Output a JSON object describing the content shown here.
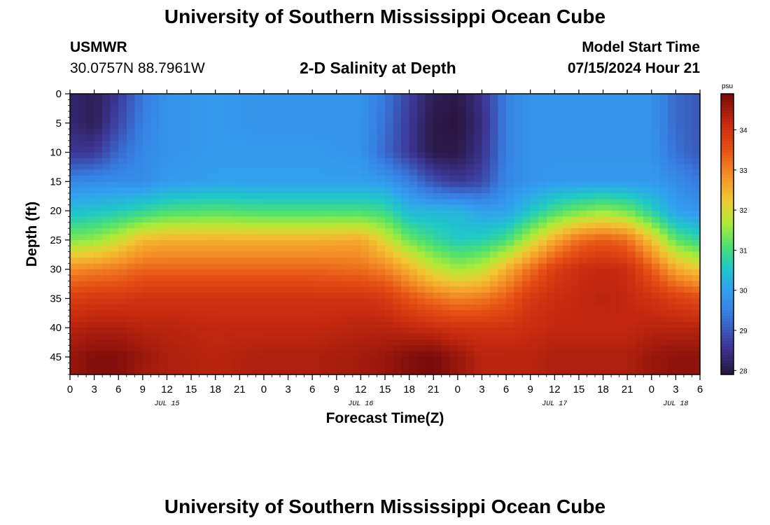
{
  "header": {
    "title": "University of Southern Mississippi Ocean Cube",
    "station_name": "USMWR",
    "station_coords": "30.0757N  88.7961W",
    "model_start_label": "Model Start Time",
    "model_start_value": "07/15/2024 Hour 21"
  },
  "footer": {
    "title": "University of Southern Mississippi Ocean Cube"
  },
  "chart_data": {
    "type": "heatmap",
    "title": "2-D Salinity at Depth",
    "xlabel": "Forecast Time(Z)",
    "ylabel": "Depth (ft)",
    "x_hours_range": [
      0,
      78
    ],
    "x_tick_labels": [
      "0",
      "3",
      "6",
      "9",
      "12",
      "15",
      "18",
      "21",
      "0",
      "3",
      "6",
      "9",
      "12",
      "15",
      "18",
      "21",
      "0",
      "3",
      "6",
      "9",
      "12",
      "15",
      "18",
      "21",
      "0",
      "3",
      "6"
    ],
    "day_labels": [
      {
        "label": "JUL 15",
        "hour": 12
      },
      {
        "label": "JUL 16",
        "hour": 36
      },
      {
        "label": "JUL 17",
        "hour": 60
      },
      {
        "label": "JUL 18",
        "hour": 75
      }
    ],
    "y_range": [
      0,
      48
    ],
    "y_ticks": [
      0,
      5,
      10,
      15,
      20,
      25,
      30,
      35,
      40,
      45
    ],
    "y_inverted": true,
    "colorbar": {
      "unit": "psu",
      "min": 27.9,
      "max": 34.9,
      "ticks": [
        28,
        29,
        30,
        31,
        32,
        33,
        34
      ]
    },
    "depth_samples_ft": [
      0,
      5,
      10,
      15,
      20,
      25,
      30,
      35,
      40,
      45,
      48
    ],
    "salinity_profiles": [
      {
        "hour": 0,
        "values": [
          28.3,
          28.3,
          28.6,
          29.6,
          30.4,
          31.4,
          32.9,
          33.8,
          34.3,
          34.6,
          34.6
        ]
      },
      {
        "hour": 3,
        "values": [
          28.1,
          28.1,
          28.6,
          29.7,
          30.5,
          31.5,
          33.0,
          33.9,
          34.4,
          34.8,
          34.8
        ]
      },
      {
        "hour": 6,
        "values": [
          28.6,
          28.8,
          29.2,
          29.7,
          30.6,
          31.9,
          33.1,
          33.9,
          34.4,
          34.8,
          34.8
        ]
      },
      {
        "hour": 9,
        "values": [
          29.4,
          29.5,
          29.6,
          29.7,
          30.8,
          32.4,
          33.3,
          34.0,
          34.3,
          34.6,
          34.5
        ]
      },
      {
        "hour": 12,
        "values": [
          29.8,
          29.8,
          29.8,
          29.9,
          31.0,
          32.5,
          33.3,
          34.0,
          34.3,
          34.4,
          34.4
        ]
      },
      {
        "hour": 18,
        "values": [
          29.9,
          29.9,
          29.9,
          30.0,
          31.1,
          32.5,
          33.3,
          34.0,
          34.2,
          34.3,
          34.3
        ]
      },
      {
        "hour": 24,
        "values": [
          29.8,
          29.8,
          29.9,
          30.0,
          31.0,
          32.5,
          33.3,
          34.0,
          34.2,
          34.4,
          34.4
        ]
      },
      {
        "hour": 30,
        "values": [
          29.8,
          29.8,
          29.9,
          30.0,
          31.0,
          32.5,
          33.3,
          34.0,
          34.2,
          34.4,
          34.4
        ]
      },
      {
        "hour": 36,
        "values": [
          29.8,
          29.8,
          29.8,
          30.0,
          31.0,
          32.6,
          33.2,
          34.0,
          34.3,
          34.5,
          34.5
        ]
      },
      {
        "hour": 39,
        "values": [
          29.4,
          29.3,
          29.2,
          29.9,
          30.9,
          32.0,
          33.0,
          33.9,
          34.3,
          34.6,
          34.6
        ]
      },
      {
        "hour": 42,
        "values": [
          28.7,
          28.6,
          28.6,
          29.5,
          30.3,
          31.3,
          32.5,
          33.5,
          34.2,
          34.8,
          34.8
        ]
      },
      {
        "hour": 45,
        "values": [
          28.1,
          28.0,
          28.0,
          28.9,
          30.3,
          30.9,
          31.9,
          33.2,
          34.1,
          34.9,
          34.9
        ]
      },
      {
        "hour": 48,
        "values": [
          28.0,
          27.9,
          28.0,
          28.6,
          30.3,
          30.6,
          31.6,
          33.0,
          34.0,
          34.6,
          34.6
        ]
      },
      {
        "hour": 51,
        "values": [
          28.5,
          28.4,
          28.5,
          28.8,
          30.0,
          30.7,
          31.8,
          33.1,
          34.0,
          34.3,
          34.3
        ]
      },
      {
        "hour": 54,
        "values": [
          29.5,
          29.5,
          29.5,
          29.6,
          30.0,
          31.0,
          32.5,
          33.4,
          34.0,
          34.3,
          34.3
        ]
      },
      {
        "hour": 57,
        "values": [
          29.8,
          29.8,
          29.8,
          29.8,
          30.5,
          31.8,
          33.2,
          33.9,
          34.1,
          34.3,
          34.3
        ]
      },
      {
        "hour": 60,
        "values": [
          29.8,
          29.8,
          29.8,
          29.9,
          31.0,
          32.6,
          33.8,
          34.1,
          34.2,
          34.4,
          34.4
        ]
      },
      {
        "hour": 63,
        "values": [
          29.8,
          29.8,
          29.8,
          29.9,
          31.3,
          33.2,
          34.1,
          34.2,
          34.2,
          34.4,
          34.4
        ]
      },
      {
        "hour": 66,
        "values": [
          29.8,
          29.8,
          29.8,
          29.9,
          31.5,
          33.4,
          34.2,
          34.3,
          34.2,
          34.4,
          34.4
        ]
      },
      {
        "hour": 69,
        "values": [
          29.8,
          29.8,
          29.8,
          29.9,
          31.3,
          33.2,
          34.1,
          34.2,
          34.2,
          34.4,
          34.4
        ]
      },
      {
        "hour": 72,
        "values": [
          29.8,
          29.8,
          29.8,
          29.9,
          30.7,
          32.3,
          33.4,
          34.0,
          34.3,
          34.6,
          34.6
        ]
      },
      {
        "hour": 75,
        "values": [
          29.2,
          29.2,
          29.3,
          29.7,
          30.0,
          31.2,
          32.6,
          33.8,
          34.3,
          34.7,
          34.7
        ]
      },
      {
        "hour": 78,
        "values": [
          29.0,
          29.0,
          29.0,
          29.4,
          29.8,
          30.8,
          32.2,
          33.6,
          34.3,
          34.7,
          34.7
        ]
      }
    ]
  }
}
